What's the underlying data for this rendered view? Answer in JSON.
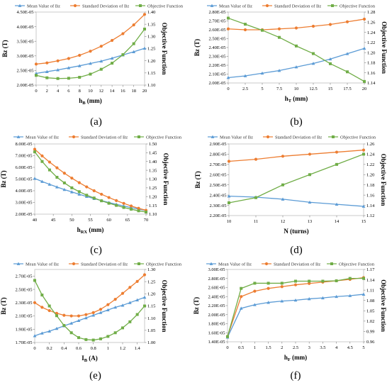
{
  "series_names": [
    "Mean Value of Bz",
    "Standard Deviation of Bz",
    "Objective Function"
  ],
  "series_colors": [
    "#5b9bd5",
    "#ed7d31",
    "#70ad47"
  ],
  "chart_data": [
    {
      "type": "line",
      "panel_label": "(a)",
      "x": [
        0,
        2,
        4,
        6,
        8,
        10,
        12,
        14,
        16,
        18,
        20
      ],
      "xticks": [
        "0",
        "2",
        "4",
        "6",
        "8",
        "10",
        "12",
        "14",
        "16",
        "18",
        "20"
      ],
      "xlim": [
        0,
        20
      ],
      "xlabel": "hB (mm)",
      "xlabel_main": "h",
      "xlabel_sub": "B",
      "xlabel_unit": " (mm)",
      "ylabel": "Bz (T)",
      "ylim": [
        2e-05,
        4.5e-05
      ],
      "yticks": [
        "2.00E-05",
        "2.50E-05",
        "3.00E-05",
        "3.50E-05",
        "4.00E-05",
        "4.50E-05"
      ],
      "y2label": "Objective Function",
      "y2lim": [
        1.1,
        1.4
      ],
      "y2ticks": [
        "1.10",
        "1.15",
        "1.20",
        "1.25",
        "1.30",
        "1.35",
        "1.40"
      ],
      "series": [
        {
          "name": "Mean Value of Bz",
          "axis": "left",
          "values": [
            2.4e-05,
            2.46e-05,
            2.52e-05,
            2.59e-05,
            2.66e-05,
            2.74e-05,
            2.82e-05,
            2.92e-05,
            3.03e-05,
            3.14e-05,
            3.26e-05
          ]
        },
        {
          "name": "Standard Deviation of Bz",
          "axis": "left",
          "values": [
            2.72e-05,
            2.76e-05,
            2.83e-05,
            2.91e-05,
            3.02e-05,
            3.16e-05,
            3.33e-05,
            3.53e-05,
            3.76e-05,
            4.06e-05,
            4.42e-05
          ]
        },
        {
          "name": "Objective Function",
          "axis": "right",
          "values": [
            1.14,
            1.13,
            1.127,
            1.128,
            1.132,
            1.145,
            1.165,
            1.19,
            1.225,
            1.27,
            1.33
          ]
        }
      ]
    },
    {
      "type": "line",
      "panel_label": "(b)",
      "x": [
        0,
        2.5,
        5,
        7.5,
        10,
        12.5,
        15,
        17.5,
        20
      ],
      "xticks": [
        "0",
        "2.5",
        "5",
        "7.5",
        "10",
        "12.5",
        "15",
        "17.5",
        "20"
      ],
      "xlim": [
        0,
        20
      ],
      "xlabel": "hT (mm)",
      "xlabel_main": "h",
      "xlabel_sub": "T",
      "xlabel_unit": " (mm)",
      "ylabel": "Bz (T)",
      "ylim": [
        2e-05,
        2.8e-05
      ],
      "yticks": [
        "2.00E-05",
        "2.10E-05",
        "2.20E-05",
        "2.30E-05",
        "2.40E-05",
        "2.50E-05",
        "2.60E-05",
        "2.70E-05",
        "2.80E-05"
      ],
      "y2label": "Objective Function",
      "y2lim": [
        1.14,
        1.28
      ],
      "y2ticks": [
        "1.14",
        "1.16",
        "1.18",
        "1.20",
        "1.22",
        "1.24",
        "1.26",
        "1.28"
      ],
      "series": [
        {
          "name": "Mean Value of Bz",
          "axis": "left",
          "values": [
            2.06e-05,
            2.08e-05,
            2.11e-05,
            2.14e-05,
            2.18e-05,
            2.22e-05,
            2.27e-05,
            2.33e-05,
            2.39e-05
          ]
        },
        {
          "name": "Standard Deviation of Bz",
          "axis": "left",
          "values": [
            2.61e-05,
            2.6e-05,
            2.6e-05,
            2.61e-05,
            2.62e-05,
            2.64e-05,
            2.66e-05,
            2.69e-05,
            2.72e-05
          ]
        },
        {
          "name": "Objective Function",
          "axis": "right",
          "values": [
            1.268,
            1.256,
            1.244,
            1.23,
            1.213,
            1.198,
            1.178,
            1.162,
            1.143
          ]
        }
      ]
    },
    {
      "type": "line",
      "panel_label": "(c)",
      "x": [
        40,
        42,
        44,
        46,
        48,
        50,
        52,
        54,
        56,
        58,
        60,
        62,
        64,
        66,
        68,
        70
      ],
      "xticks": [
        "40",
        "45",
        "50",
        "55",
        "60",
        "65",
        "70"
      ],
      "xtick_values": [
        40,
        45,
        50,
        55,
        60,
        65,
        70
      ],
      "xlim": [
        40,
        70
      ],
      "xlabel": "hRX (mm)",
      "xlabel_main": "h",
      "xlabel_sub": "RX",
      "xlabel_unit": " (mm)",
      "ylabel": "Bz (T)",
      "ylim": [
        2e-05,
        8e-05
      ],
      "yticks": [
        "2.00E-05",
        "3.00E-05",
        "4.00E-05",
        "5.00E-05",
        "6.00E-05",
        "7.00E-05",
        "8.00E-05"
      ],
      "y2label": "Objective Function",
      "y2lim": [
        1.1,
        1.5
      ],
      "y2ticks": [
        "1.10",
        "1.15",
        "1.20",
        "1.25",
        "1.30",
        "1.35",
        "1.40",
        "1.45",
        "1.50"
      ],
      "series": [
        {
          "name": "Mean Value of Bz",
          "axis": "left",
          "values": [
            5.05e-05,
            4.79e-05,
            4.55e-05,
            4.32e-05,
            4.1e-05,
            3.9e-05,
            3.7e-05,
            3.51e-05,
            3.33e-05,
            3.16e-05,
            2.99e-05,
            2.84e-05,
            2.7e-05,
            2.56e-05,
            2.43e-05,
            2.31e-05
          ]
        },
        {
          "name": "Standard Deviation of Bz",
          "axis": "left",
          "values": [
            7.55e-05,
            6.98e-05,
            6.45e-05,
            5.96e-05,
            5.5e-05,
            5.08e-05,
            4.69e-05,
            4.33e-05,
            4e-05,
            3.7e-05,
            3.42e-05,
            3.16e-05,
            2.92e-05,
            2.7e-05,
            2.5e-05,
            2.33e-05
          ]
        },
        {
          "name": "Objective Function",
          "axis": "right",
          "values": [
            1.455,
            1.4,
            1.352,
            1.31,
            1.278,
            1.25,
            1.228,
            1.208,
            1.192,
            1.176,
            1.162,
            1.15,
            1.138,
            1.128,
            1.119,
            1.112
          ]
        }
      ]
    },
    {
      "type": "line",
      "panel_label": "(d)",
      "x": [
        10,
        11,
        12,
        13,
        14,
        15
      ],
      "xticks": [
        "10",
        "11",
        "12",
        "13",
        "14",
        "15"
      ],
      "xlim": [
        10,
        15
      ],
      "xlabel": "N (turns)",
      "xlabel_main": "N (turns)",
      "xlabel_sub": "",
      "xlabel_unit": "",
      "ylabel": "Bz (T)",
      "ylim": [
        2.2e-05,
        2.9e-05
      ],
      "yticks": [
        "2.20E-05",
        "2.30E-05",
        "2.40E-05",
        "2.50E-05",
        "2.60E-05",
        "2.70E-05",
        "2.80E-05",
        "2.90E-05"
      ],
      "y2label": "Objective Function",
      "y2lim": [
        1.12,
        1.26
      ],
      "y2ticks": [
        "1.12",
        "1.14",
        "1.16",
        "1.18",
        "1.20",
        "1.22",
        "1.24",
        "1.26"
      ],
      "series": [
        {
          "name": "Mean Value of Bz",
          "axis": "left",
          "values": [
            2.39e-05,
            2.38e-05,
            2.36e-05,
            2.33e-05,
            2.31e-05,
            2.29e-05
          ]
        },
        {
          "name": "Standard Deviation of Bz",
          "axis": "left",
          "values": [
            2.73e-05,
            2.75e-05,
            2.78e-05,
            2.8e-05,
            2.82e-05,
            2.84e-05
          ]
        },
        {
          "name": "Objective Function",
          "axis": "right",
          "values": [
            1.145,
            1.155,
            1.18,
            1.2,
            1.22,
            1.24
          ]
        }
      ]
    },
    {
      "type": "line",
      "panel_label": "(e)",
      "x": [
        0,
        0.1,
        0.2,
        0.3,
        0.4,
        0.5,
        0.6,
        0.7,
        0.8,
        0.9,
        1.0,
        1.1,
        1.2,
        1.3,
        1.4,
        1.5
      ],
      "xticks": [
        "0",
        "0.2",
        "0.4",
        "0.6",
        "0.8",
        "1",
        "1.2",
        "1.4"
      ],
      "xtick_values": [
        0,
        0.2,
        0.4,
        0.6,
        0.8,
        1.0,
        1.2,
        1.4
      ],
      "xlim": [
        0,
        1.5
      ],
      "xlabel": "IB (A)",
      "xlabel_main": "I",
      "xlabel_sub": "B",
      "xlabel_unit": " (A)",
      "ylabel": "Bz (T)",
      "ylim": [
        1.7e-05,
        2.8e-05
      ],
      "yticks": [
        "1.70E-05",
        "1.90E-05",
        "2.10E-05",
        "2.30E-05",
        "2.50E-05",
        "2.70E-05"
      ],
      "ytick_values": [
        1.7e-05,
        1.9e-05,
        2.1e-05,
        2.3e-05,
        2.5e-05,
        2.7e-05
      ],
      "y2label": "Objective Function",
      "y2lim": [
        1.0,
        1.3
      ],
      "y2ticks": [
        "1.00",
        "1.05",
        "1.10",
        "1.15",
        "1.20",
        "1.25",
        "1.30"
      ],
      "series": [
        {
          "name": "Mean Value of Bz",
          "axis": "left",
          "values": [
            1.8e-05,
            1.84e-05,
            1.87e-05,
            1.91e-05,
            1.95e-05,
            1.99e-05,
            2.03e-05,
            2.07e-05,
            2.11e-05,
            2.15e-05,
            2.19e-05,
            2.23e-05,
            2.26e-05,
            2.3e-05,
            2.34e-05,
            2.38e-05
          ]
        },
        {
          "name": "Standard Deviation of Bz",
          "axis": "left",
          "values": [
            2.3e-05,
            2.23e-05,
            2.18e-05,
            2.14e-05,
            2.11e-05,
            2.1e-05,
            2.1e-05,
            2.12e-05,
            2.15e-05,
            2.2e-05,
            2.27e-05,
            2.35e-05,
            2.44e-05,
            2.53e-05,
            2.62e-05,
            2.72e-05
          ]
        },
        {
          "name": "Objective Function",
          "axis": "right",
          "values": [
            1.255,
            1.195,
            1.15,
            1.11,
            1.07,
            1.04,
            1.02,
            1.012,
            1.01,
            1.015,
            1.025,
            1.04,
            1.06,
            1.085,
            1.115,
            1.15
          ]
        }
      ]
    },
    {
      "type": "line",
      "panel_label": "(f)",
      "x": [
        0,
        0.5,
        1,
        1.5,
        2,
        2.5,
        3,
        3.5,
        4,
        4.5,
        5
      ],
      "xticks": [
        "0",
        "0.5",
        "1",
        "1.5",
        "2",
        "2.5",
        "3",
        "3.5",
        "4",
        "4.5",
        "5"
      ],
      "xlim": [
        0,
        5
      ],
      "xlabel": "hF (mm)",
      "xlabel_main": "h",
      "xlabel_sub": "F",
      "xlabel_unit": " (mm)",
      "ylabel": "Bz (T)",
      "ylim": [
        1.4e-05,
        3e-05
      ],
      "yticks": [
        "1.40E-05",
        "1.60E-05",
        "1.80E-05",
        "2.00E-05",
        "2.20E-05",
        "2.40E-05",
        "2.60E-05",
        "2.80E-05",
        "3.00E-05"
      ],
      "y2label": "Objective Function",
      "y2lim": [
        0.96,
        1.17
      ],
      "y2ticks": [
        "0.96",
        "0.99",
        "1.02",
        "1.05",
        "1.08",
        "1.11",
        "1.14",
        "1.17"
      ],
      "series": [
        {
          "name": "Mean Value of Bz",
          "axis": "left",
          "values": [
            1.5e-05,
            2.14e-05,
            2.22e-05,
            2.27e-05,
            2.3e-05,
            2.32e-05,
            2.35e-05,
            2.37e-05,
            2.4e-05,
            2.42e-05,
            2.45e-05
          ]
        },
        {
          "name": "Standard Deviation of Bz",
          "axis": "left",
          "values": [
            1.52e-05,
            2.4e-05,
            2.52e-05,
            2.58e-05,
            2.62e-05,
            2.66e-05,
            2.69e-05,
            2.72e-05,
            2.75e-05,
            2.78e-05,
            2.82e-05
          ]
        },
        {
          "name": "Objective Function",
          "axis": "right",
          "values": [
            0.975,
            1.115,
            1.13,
            1.13,
            1.13,
            1.136,
            1.136,
            1.136,
            1.137,
            1.144,
            1.144
          ]
        }
      ]
    }
  ]
}
